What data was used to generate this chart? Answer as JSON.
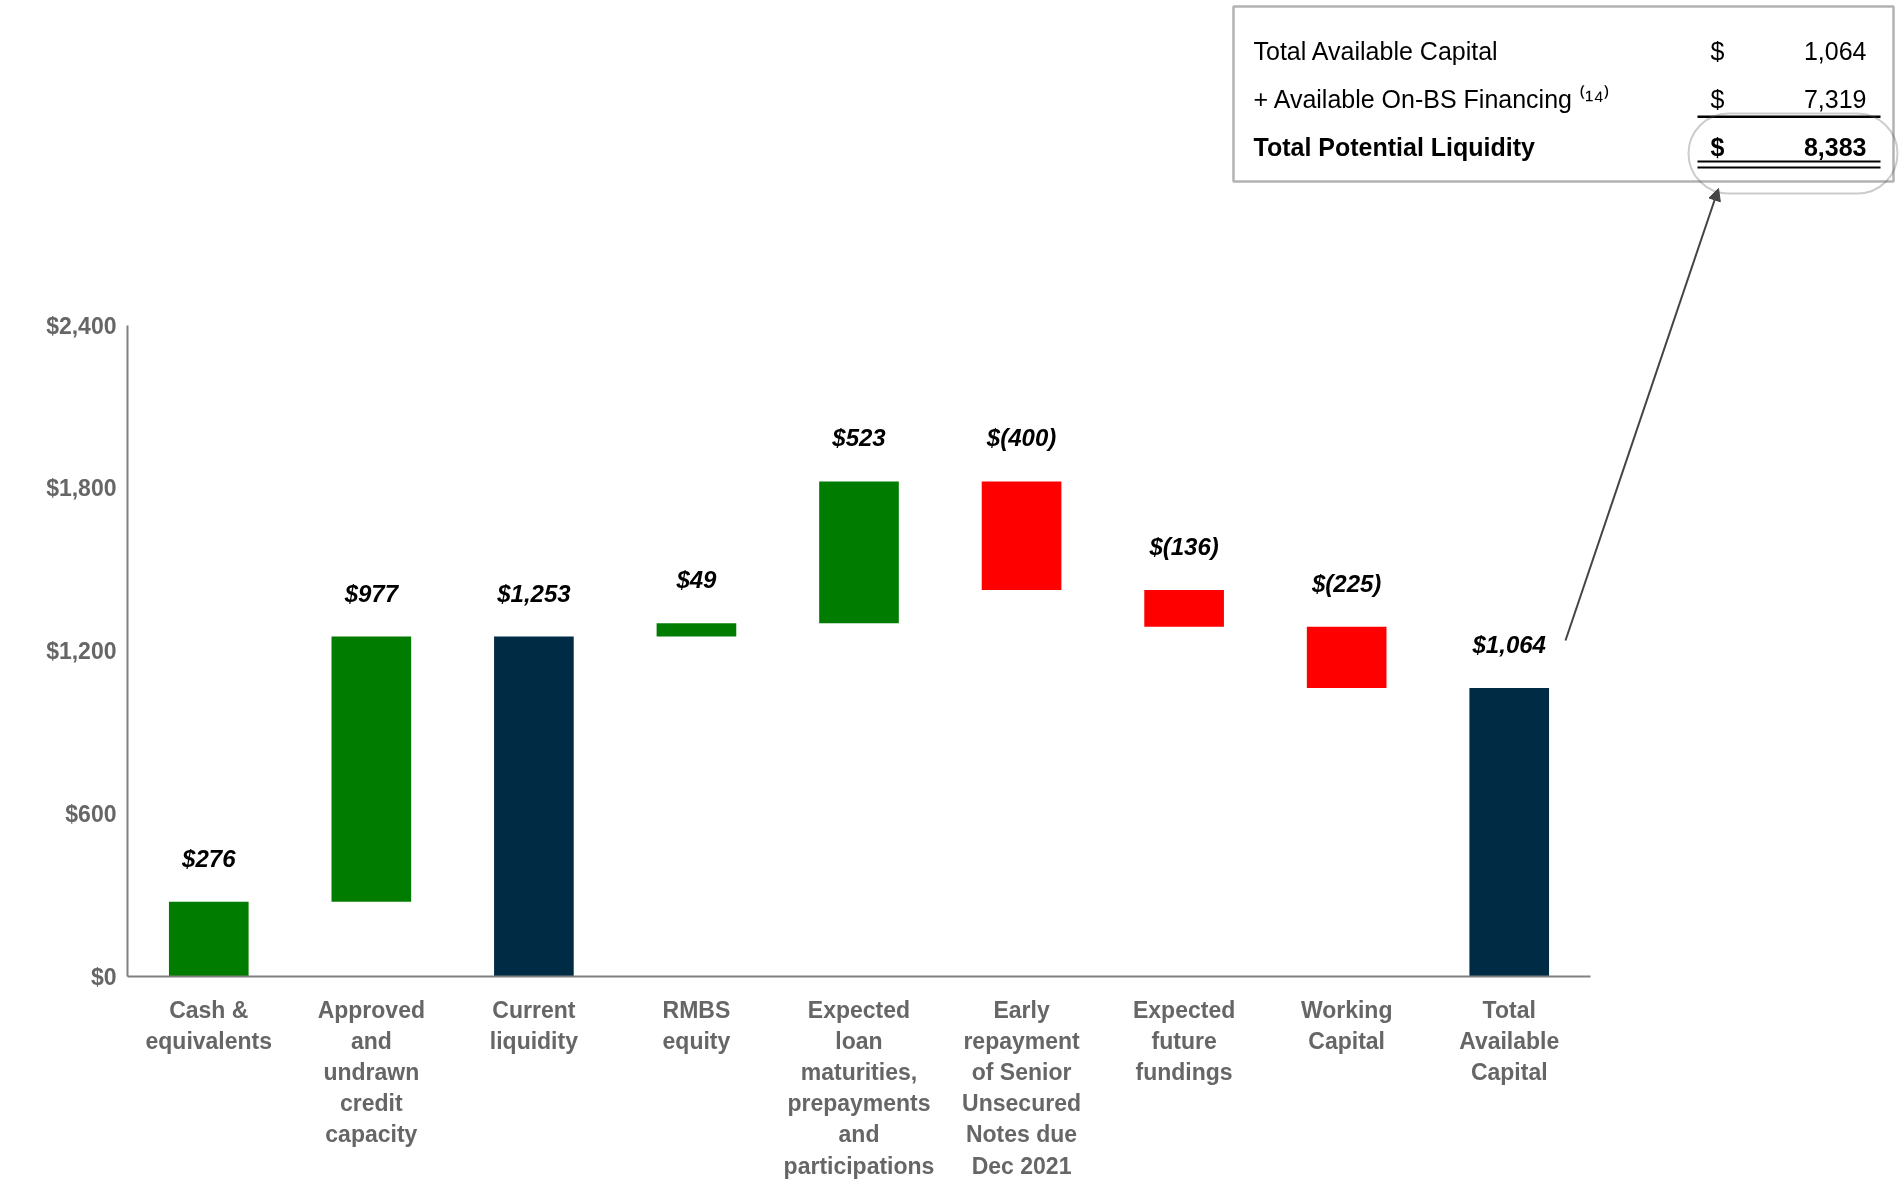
{
  "chart_data": {
    "type": "bar",
    "categories": [
      "Cash & equivalents",
      "Approved and undrawn credit capacity",
      "Current liquidity",
      "RMBS equity",
      "Expected loan maturities, prepayments and participations",
      "Early repayment of Senior Unsecured Notes due Dec 2021",
      "Expected future fundings",
      "Working Capital",
      "Total Available Capital"
    ],
    "values": [
      276,
      977,
      1253,
      49,
      523,
      -400,
      -136,
      -225,
      1064
    ],
    "base": [
      0,
      276,
      0,
      1253,
      1302,
      1825,
      1425,
      1289,
      0
    ],
    "colors": [
      "#007d00",
      "#007d00",
      "#002b45",
      "#007d00",
      "#007d00",
      "#ff0000",
      "#ff0000",
      "#ff0000",
      "#002b45"
    ],
    "value_labels": [
      "$276",
      "$977",
      "$1,253",
      "$49",
      "$523",
      "$(400)",
      "$(136)",
      "$(225)",
      "$1,064"
    ],
    "ylim": [
      0,
      2400
    ],
    "yticks": [
      {
        "value": 0,
        "label": "$0"
      },
      {
        "value": 600,
        "label": "$600"
      },
      {
        "value": 1200,
        "label": "$1,200"
      },
      {
        "value": 1800,
        "label": "$1,800"
      },
      {
        "value": 2400,
        "label": "$2,400"
      }
    ],
    "grid": false,
    "annotations": [
      "Total Available Capital",
      "$",
      "1,064",
      " + Available On-BS Financing ⁽¹⁴⁾",
      "$",
      "7,319",
      "Total Potential Liquidity",
      "$",
      "8,383"
    ]
  }
}
